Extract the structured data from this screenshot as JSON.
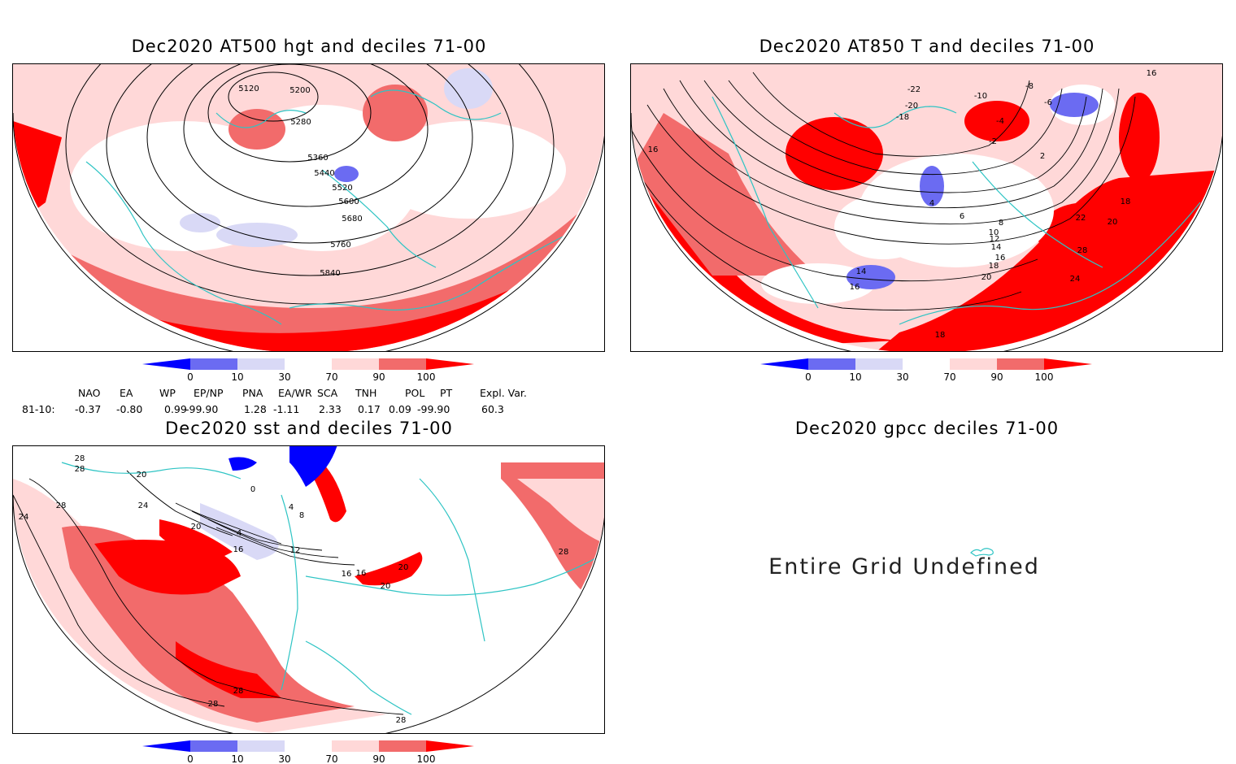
{
  "panels": {
    "hgt500": {
      "title": "Dec2020 AT500 hgt and deciles 71-00",
      "contour_labels": [
        "5120",
        "5200",
        "5280",
        "5360",
        "5440",
        "5520",
        "5600",
        "5680",
        "5760",
        "5840"
      ]
    },
    "t850": {
      "title": "Dec2020 AT850 T and deciles 71-00",
      "contour_labels": [
        "-22",
        "-20",
        "-18",
        "-10",
        "-8",
        "-6",
        "-4",
        "-2",
        "2",
        "4",
        "6",
        "8",
        "10",
        "12",
        "14",
        "16",
        "18",
        "20",
        "22",
        "24",
        "28",
        "16",
        "14",
        "16",
        "18",
        "20",
        "18",
        "16"
      ]
    },
    "sst": {
      "title": "Dec2020 sst and deciles 71-00",
      "contour_labels": [
        "28",
        "28",
        "20",
        "24",
        "28",
        "24",
        "20",
        "16",
        "4",
        "8",
        "12",
        "4",
        "0",
        "16",
        "20",
        "20",
        "28",
        "28",
        "28",
        "28",
        "16"
      ]
    },
    "gpcc": {
      "title": "Dec2020 gpcc deciles 71-00",
      "message": "Entire Grid Undefined"
    }
  },
  "colorbar": {
    "labels": [
      "0",
      "10",
      "30",
      "70",
      "90",
      "100"
    ],
    "colors": [
      "#0000ff",
      "#6b6bf2",
      "#d9d9f6",
      "#ffffff",
      "#ffd8d8",
      "#f26b6b",
      "#ff0000"
    ]
  },
  "indices": {
    "row_label": "81-10:",
    "items": [
      {
        "name": "NAO",
        "value": "-0.37"
      },
      {
        "name": "EA",
        "value": "-0.80"
      },
      {
        "name": "WP",
        "value": "0.99"
      },
      {
        "name": "EP/NP",
        "value": "-99.90"
      },
      {
        "name": "PNA",
        "value": "1.28"
      },
      {
        "name": "EA/WR",
        "value": "-1.11"
      },
      {
        "name": "SCA",
        "value": "2.33"
      },
      {
        "name": "TNH",
        "value": "0.17"
      },
      {
        "name": "POL",
        "value": "0.09"
      },
      {
        "name": "PT",
        "value": "-99.90"
      },
      {
        "name": "Expl. Var.",
        "value": "60.3"
      }
    ]
  }
}
